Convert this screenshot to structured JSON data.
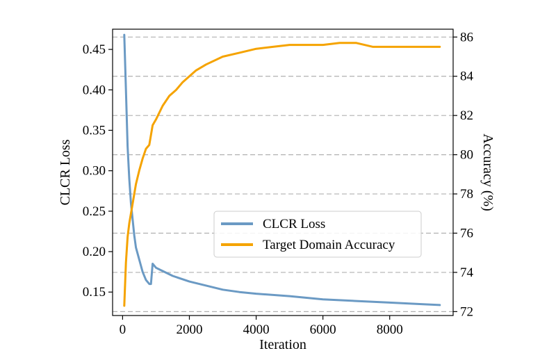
{
  "chart_data": {
    "type": "line",
    "xlabel": "Iteration",
    "xlim": [
      -300,
      9900
    ],
    "xticks": [
      0,
      2000,
      4000,
      6000,
      8000
    ],
    "y_left": {
      "label": "CLCR Loss",
      "lim": [
        0.121,
        0.475
      ],
      "ticks": [
        "0.15",
        "0.20",
        "0.25",
        "0.30",
        "0.35",
        "0.40",
        "0.45"
      ],
      "tick_values": [
        0.15,
        0.2,
        0.25,
        0.3,
        0.35,
        0.4,
        0.45
      ]
    },
    "y_right": {
      "label": "Accuracy (%)",
      "lim": [
        71.8,
        86.4
      ],
      "ticks": [
        "72",
        "74",
        "76",
        "78",
        "80",
        "82",
        "84",
        "86"
      ],
      "tick_values": [
        72,
        74,
        76,
        78,
        80,
        82,
        84,
        86
      ],
      "grid": "dashed"
    },
    "legend_position": "center-right",
    "series": [
      {
        "name": "CLCR Loss",
        "axis": "left",
        "color": "#6b9ac4",
        "x": [
          50,
          100,
          150,
          200,
          250,
          300,
          350,
          400,
          500,
          600,
          700,
          800,
          850,
          900,
          1000,
          1200,
          1500,
          2000,
          2500,
          3000,
          3500,
          4000,
          5000,
          6000,
          7000,
          8000,
          9000,
          9500
        ],
        "y": [
          0.468,
          0.4,
          0.33,
          0.29,
          0.26,
          0.24,
          0.22,
          0.205,
          0.19,
          0.175,
          0.165,
          0.16,
          0.16,
          0.185,
          0.18,
          0.176,
          0.17,
          0.163,
          0.158,
          0.153,
          0.15,
          0.148,
          0.145,
          0.141,
          0.139,
          0.137,
          0.135,
          0.134
        ]
      },
      {
        "name": "Target Domain Accuracy",
        "axis": "right",
        "color": "#f5a300",
        "x": [
          50,
          100,
          150,
          200,
          300,
          400,
          500,
          600,
          700,
          800,
          900,
          1000,
          1200,
          1400,
          1600,
          1800,
          2000,
          2200,
          2500,
          3000,
          3500,
          4000,
          4500,
          5000,
          5500,
          6000,
          6500,
          7000,
          7500,
          8000,
          8500,
          9000,
          9500
        ],
        "y": [
          72.3,
          74.5,
          75.8,
          76.5,
          77.5,
          78.5,
          79.2,
          79.8,
          80.3,
          80.5,
          81.5,
          81.8,
          82.5,
          83.0,
          83.3,
          83.7,
          84.0,
          84.3,
          84.6,
          85.0,
          85.2,
          85.4,
          85.5,
          85.6,
          85.6,
          85.6,
          85.7,
          85.7,
          85.5,
          85.5,
          85.5,
          85.5,
          85.5
        ]
      }
    ]
  }
}
